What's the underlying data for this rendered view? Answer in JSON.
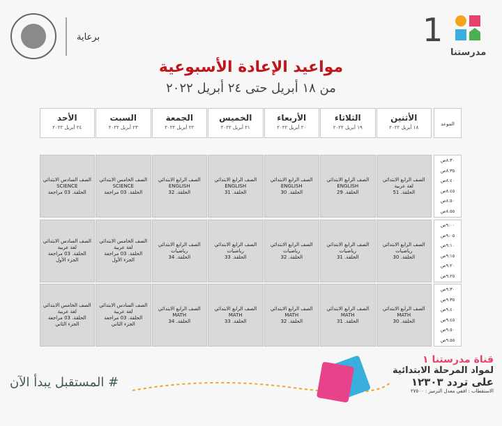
{
  "header": {
    "sponsor": "برعاية",
    "brand": "مدرستنا",
    "channel_number": "1"
  },
  "title": "مواعيد الإعادة الأسبوعية",
  "subtitle": "من ١٨ أبريل حتى ٢٤ أبريل ٢٠٢٢",
  "table": {
    "time_header": "الموعد",
    "columns": [
      {
        "day": "الأثنين",
        "date": "١٨ أبريل ٢٠٢٢"
      },
      {
        "day": "الثلاثاء",
        "date": "١٩ أبريل ٢٠٢٢"
      },
      {
        "day": "الأربعاء",
        "date": "٢٠ أبريل ٢٠٢٢"
      },
      {
        "day": "الخميس",
        "date": "٢١ أبريل ٢٠٢٢"
      },
      {
        "day": "الجمعة",
        "date": "٢٢ أبريل ٢٠٢٢"
      },
      {
        "day": "السبت",
        "date": "٢٣ أبريل ٢٠٢٢"
      },
      {
        "day": "الأحد",
        "date": "٢٤ أبريل ٢٠٢٢"
      }
    ],
    "rows": [
      {
        "times": [
          "٨:٣٠ص",
          "٨:٣٥ص",
          "٨:٤٠ص",
          "٨:٤٥ص",
          "٨:٥٠ص",
          "٨:٥٥ص"
        ],
        "cells": [
          [
            "الصف الرابع الابتدائي",
            "لغة عربية",
            "الحلقة. 51"
          ],
          [
            "الصف الرابع الابتدائي",
            "ENGLISH",
            "الحلقة. 29"
          ],
          [
            "الصف الرابع الابتدائي",
            "ENGLISH",
            "الحلقة. 30"
          ],
          [
            "الصف الرابع الابتدائي",
            "ENGLISH",
            "الحلقة. 31"
          ],
          [
            "الصف الرابع الابتدائي",
            "ENGLISH",
            "الحلقة. 32"
          ],
          [
            "الصف الخامس الابتدائي",
            "SCIENCE",
            "الحلقة. 03 مراجعة"
          ],
          [
            "الصف السادس الابتدائي",
            "SCIENCE",
            "الحلقة. 03 مراجعة"
          ]
        ]
      },
      {
        "times": [
          "٩:٠٠ص",
          "٩:٠٥ص",
          "٩:١٠ص",
          "٩:١٥ص",
          "٩:٢٠ص",
          "٩:٢٥ص"
        ],
        "cells": [
          [
            "الصف الرابع الابتدائي",
            "رياضيات",
            "الحلقة. 30"
          ],
          [
            "الصف الرابع الابتدائي",
            "رياضيات",
            "الحلقة. 31"
          ],
          [
            "الصف الرابع الابتدائي",
            "رياضيات",
            "الحلقة. 32"
          ],
          [
            "الصف الرابع الابتدائي",
            "رياضيات",
            "الحلقة. 33"
          ],
          [
            "الصف الرابع الابتدائي",
            "رياضيات",
            "الحلقة. 34"
          ],
          [
            "الصف الخامس الابتدائي",
            "لغة عربية",
            "الحلقة. 03 مراجعة",
            "الجزء الأول"
          ],
          [
            "الصف السادس الابتدائي",
            "لغة عربية",
            "الحلقة. 03 مراجعة",
            "الجزء الأول"
          ]
        ]
      },
      {
        "times": [
          "٩:٣٠ص",
          "٩:٣٥ص",
          "٩:٤٠ص",
          "٩:٤٥ص",
          "٩:٥٠ص",
          "٩:٥٥ص"
        ],
        "cells": [
          [
            "الصف الرابع الابتدائي",
            "MATH",
            "الحلقة. 30"
          ],
          [
            "الصف الرابع الابتدائي",
            "MATH",
            "الحلقة. 31"
          ],
          [
            "الصف الرابع الابتدائي",
            "MATH",
            "الحلقة. 32"
          ],
          [
            "الصف الرابع الابتدائي",
            "MATH",
            "الحلقة. 33"
          ],
          [
            "الصف الرابع الابتدائي",
            "MATH",
            "الحلقة. 34"
          ],
          [
            "الصف السادس الابتدائي",
            "لغة عربية",
            "الحلقة. 03 مراجعة",
            "الجزء الثاني"
          ],
          [
            "الصف الخامس الابتدائي",
            "لغة عربية",
            "الحلقة. 03 مراجعة",
            "الجزء الثاني"
          ]
        ]
      }
    ]
  },
  "footer": {
    "hashtag": "# المستقبل يبدأ الآن",
    "channel": "قناة مدرستنا ١",
    "purpose": "لمواد المرحلة الابتدائية",
    "frequency": "على تردد ١٢٣٠٣",
    "signal": "الاستقطاب : افقي معدل الترميز : ٢٧٥٠٠"
  }
}
